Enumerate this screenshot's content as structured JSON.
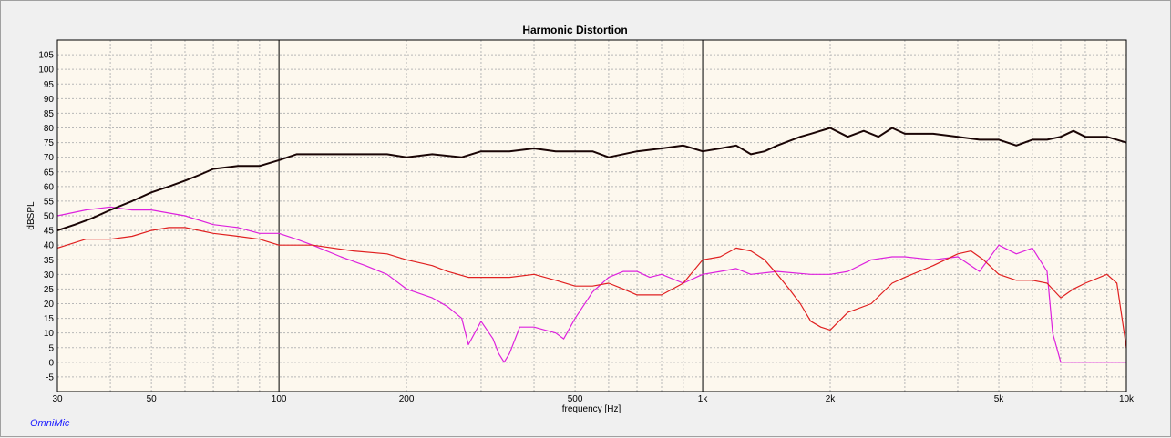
{
  "chart_data": {
    "type": "line",
    "title": "Harmonic Distortion",
    "xlabel": "frequency [Hz]",
    "ylabel": "dBSPL",
    "xscale": "log",
    "xlim": [
      30,
      10000
    ],
    "ylim": [
      -10,
      110
    ],
    "grid": true,
    "x_ticks": [
      30,
      50,
      100,
      200,
      500,
      1000,
      2000,
      5000,
      10000
    ],
    "x_tick_labels": [
      "30",
      "50",
      "100",
      "200",
      "500",
      "1k",
      "2k",
      "5k",
      "10k"
    ],
    "y_ticks": [
      -5,
      0,
      5,
      10,
      15,
      20,
      25,
      30,
      35,
      40,
      45,
      50,
      55,
      60,
      65,
      70,
      75,
      80,
      85,
      90,
      95,
      100,
      105
    ],
    "colors": {
      "fundamental": "#1a0505",
      "h2": "#e02020",
      "h3": "#dd22dd",
      "plot_bg": "#fdf8ee"
    },
    "series": [
      {
        "color": "#1a0505",
        "x": [
          30,
          33,
          36,
          40,
          45,
          50,
          55,
          60,
          65,
          70,
          80,
          90,
          100,
          110,
          130,
          150,
          180,
          200,
          230,
          270,
          300,
          350,
          400,
          450,
          500,
          550,
          600,
          700,
          800,
          900,
          950,
          1000,
          1100,
          1200,
          1300,
          1400,
          1500,
          1700,
          1800,
          2000,
          2200,
          2400,
          2600,
          2800,
          3000,
          3500,
          4000,
          4500,
          5000,
          5500,
          6000,
          6500,
          7000,
          7500,
          8000,
          9000,
          10000
        ],
        "y": [
          45,
          47,
          49,
          52,
          55,
          58,
          60,
          62,
          64,
          66,
          67,
          67,
          69,
          71,
          71,
          71,
          71,
          70,
          71,
          70,
          72,
          72,
          73,
          72,
          72,
          72,
          70,
          72,
          73,
          74,
          73,
          72,
          73,
          74,
          71,
          72,
          74,
          77,
          78,
          80,
          77,
          79,
          77,
          80,
          78,
          78,
          77,
          76,
          76,
          74,
          76,
          76,
          77,
          79,
          77,
          77,
          75
        ]
      },
      {
        "color": "#e02020",
        "x": [
          30,
          35,
          40,
          45,
          50,
          55,
          60,
          70,
          80,
          90,
          100,
          110,
          120,
          150,
          180,
          200,
          230,
          250,
          280,
          300,
          350,
          400,
          450,
          500,
          550,
          600,
          650,
          700,
          800,
          900,
          1000,
          1100,
          1200,
          1300,
          1400,
          1500,
          1600,
          1700,
          1800,
          1900,
          2000,
          2200,
          2500,
          2800,
          3000,
          3500,
          4000,
          4300,
          4600,
          5000,
          5500,
          6000,
          6500,
          7000,
          7500,
          8000,
          9000,
          9500,
          10000
        ],
        "y": [
          39,
          42,
          42,
          43,
          45,
          46,
          46,
          44,
          43,
          42,
          40,
          40,
          40,
          38,
          37,
          35,
          33,
          31,
          29,
          29,
          29,
          30,
          28,
          26,
          26,
          27,
          25,
          23,
          23,
          27,
          35,
          36,
          39,
          38,
          35,
          30,
          25,
          20,
          14,
          12,
          11,
          17,
          20,
          27,
          29,
          33,
          37,
          38,
          35,
          30,
          28,
          28,
          27,
          22,
          25,
          27,
          30,
          27,
          5
        ]
      },
      {
        "color": "#dd22dd",
        "x": [
          30,
          35,
          40,
          45,
          50,
          60,
          70,
          80,
          90,
          100,
          110,
          120,
          140,
          160,
          180,
          200,
          230,
          250,
          270,
          280,
          300,
          320,
          330,
          340,
          350,
          370,
          400,
          450,
          470,
          500,
          550,
          600,
          650,
          700,
          750,
          800,
          900,
          1000,
          1100,
          1200,
          1300,
          1500,
          1800,
          2000,
          2200,
          2500,
          2800,
          3000,
          3500,
          4000,
          4500,
          5000,
          5500,
          6000,
          6500,
          6700,
          7000,
          8000,
          10000
        ],
        "y": [
          50,
          52,
          53,
          52,
          52,
          50,
          47,
          46,
          44,
          44,
          42,
          40,
          36,
          33,
          30,
          25,
          22,
          19,
          15,
          6,
          14,
          8,
          3,
          0,
          3,
          12,
          12,
          10,
          8,
          15,
          24,
          29,
          31,
          31,
          29,
          30,
          27,
          30,
          31,
          32,
          30,
          31,
          30,
          30,
          31,
          35,
          36,
          36,
          35,
          36,
          31,
          40,
          37,
          39,
          31,
          10,
          0,
          0,
          0
        ]
      }
    ],
    "watermark": "OmniMic"
  }
}
